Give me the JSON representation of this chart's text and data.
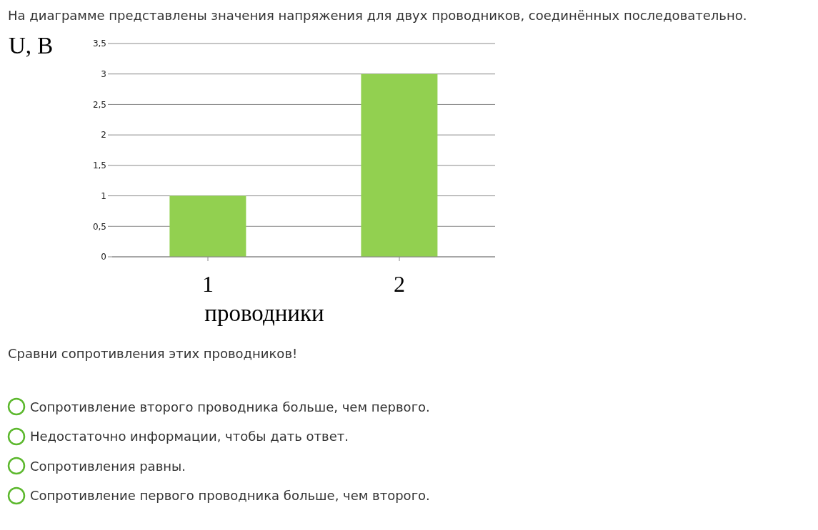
{
  "chart_data": {
    "type": "bar",
    "title": "На диаграмме представлены значения напряжения для двух проводников, соединённых последовательно.",
    "ylabel": "U, B",
    "xlabel": "проводники",
    "categories": [
      "1",
      "2"
    ],
    "values": [
      1,
      3
    ],
    "color": "#92d050",
    "ylim": [
      0,
      3.5
    ],
    "yticks": [
      0,
      {
        "value": 0.5,
        "label": "0,5"
      },
      1,
      {
        "value": 1.5,
        "label": "1,5"
      },
      2,
      {
        "value": 2.5,
        "label": "2,5"
      },
      3,
      {
        "value": 3.5,
        "label": "3,5"
      }
    ],
    "grid": "y",
    "annotations": [
      "Сравни сопротивления этих проводников!",
      "Сопротивление второго проводника больше, чем первого.",
      "Недостаточно информации, чтобы дать ответ.",
      "Сопротивления равны.",
      "Сопротивление первого проводника больше, чем второго."
    ]
  }
}
